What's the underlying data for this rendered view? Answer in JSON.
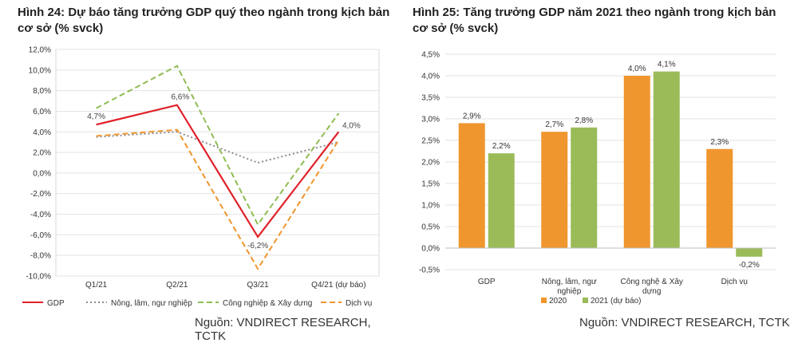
{
  "charts": [
    {
      "title": "Hình 24: Dự báo tăng trưởng GDP quý theo ngành trong kịch bản cơ sở (% svck)",
      "source": "Nguồn: VNDIRECT RESEARCH, TCTK"
    },
    {
      "title": "Hình 25: Tăng trưởng GDP năm 2021 theo ngành trong kịch bản cơ sở (% svck)",
      "source": "Nguồn: VNDIRECT RESEARCH, TCTK"
    }
  ],
  "chart_data": [
    {
      "type": "line",
      "title": "Hình 24: Dự báo tăng trưởng GDP quý theo ngành trong kịch bản cơ sở (% svck)",
      "categories": [
        "Q1/21",
        "Q2/21",
        "Q3/21",
        "Q4/21 (dự báo)"
      ],
      "ylim": [
        -10,
        12
      ],
      "yticks": [
        "-10,0%",
        "-8,0%",
        "-6,0%",
        "-4,0%",
        "-2,0%",
        "0,0%",
        "2,0%",
        "4,0%",
        "6,0%",
        "8,0%",
        "10,0%",
        "12,0%"
      ],
      "grid": true,
      "legend_position": "bottom",
      "series": [
        {
          "name": "GDP",
          "values": [
            4.7,
            6.6,
            -6.2,
            4.0
          ],
          "color": "#e0212a",
          "dash": "solid",
          "labels": [
            "4,7%",
            "6,6%",
            "-6,2%",
            "4,0%"
          ]
        },
        {
          "name": "Nông, lâm, ngư nghiệp",
          "values": [
            3.5,
            4.0,
            1.0,
            3.0
          ],
          "color": "#8c8c8c",
          "dash": "dotted"
        },
        {
          "name": "Công nghiệp & Xây dựng",
          "values": [
            6.3,
            10.4,
            -5.0,
            5.8
          ],
          "color": "#8fbc52",
          "dash": "dashed"
        },
        {
          "name": "Dịch vụ",
          "values": [
            3.6,
            4.2,
            -9.3,
            3.2
          ],
          "color": "#f0962e",
          "dash": "dashed"
        }
      ]
    },
    {
      "type": "bar",
      "title": "Hình 25: Tăng trưởng GDP năm 2021 theo ngành trong kịch bản cơ sở (% svck)",
      "categories": [
        "GDP",
        "Nông, lâm, ngư nghiệp",
        "Công nghệ & Xây dựng",
        "Dịch vụ"
      ],
      "ylim": [
        -0.5,
        4.5
      ],
      "yticks": [
        "-0,5%",
        "0,0%",
        "0,5%",
        "1,0%",
        "1,5%",
        "2,0%",
        "2,5%",
        "3,0%",
        "3,5%",
        "4,0%",
        "4,5%"
      ],
      "grid": true,
      "legend_position": "bottom",
      "series": [
        {
          "name": "2020",
          "values": [
            2.9,
            2.7,
            4.0,
            2.3
          ],
          "color": "#f0962e",
          "labels": [
            "2,9%",
            "2,7%",
            "4,0%",
            "2,3%"
          ]
        },
        {
          "name": "2021 (dự báo)",
          "values": [
            2.2,
            2.8,
            4.1,
            -0.2
          ],
          "color": "#9bbb59",
          "labels": [
            "2,2%",
            "2,8%",
            "4,1%",
            "-0,2%"
          ]
        }
      ]
    }
  ]
}
